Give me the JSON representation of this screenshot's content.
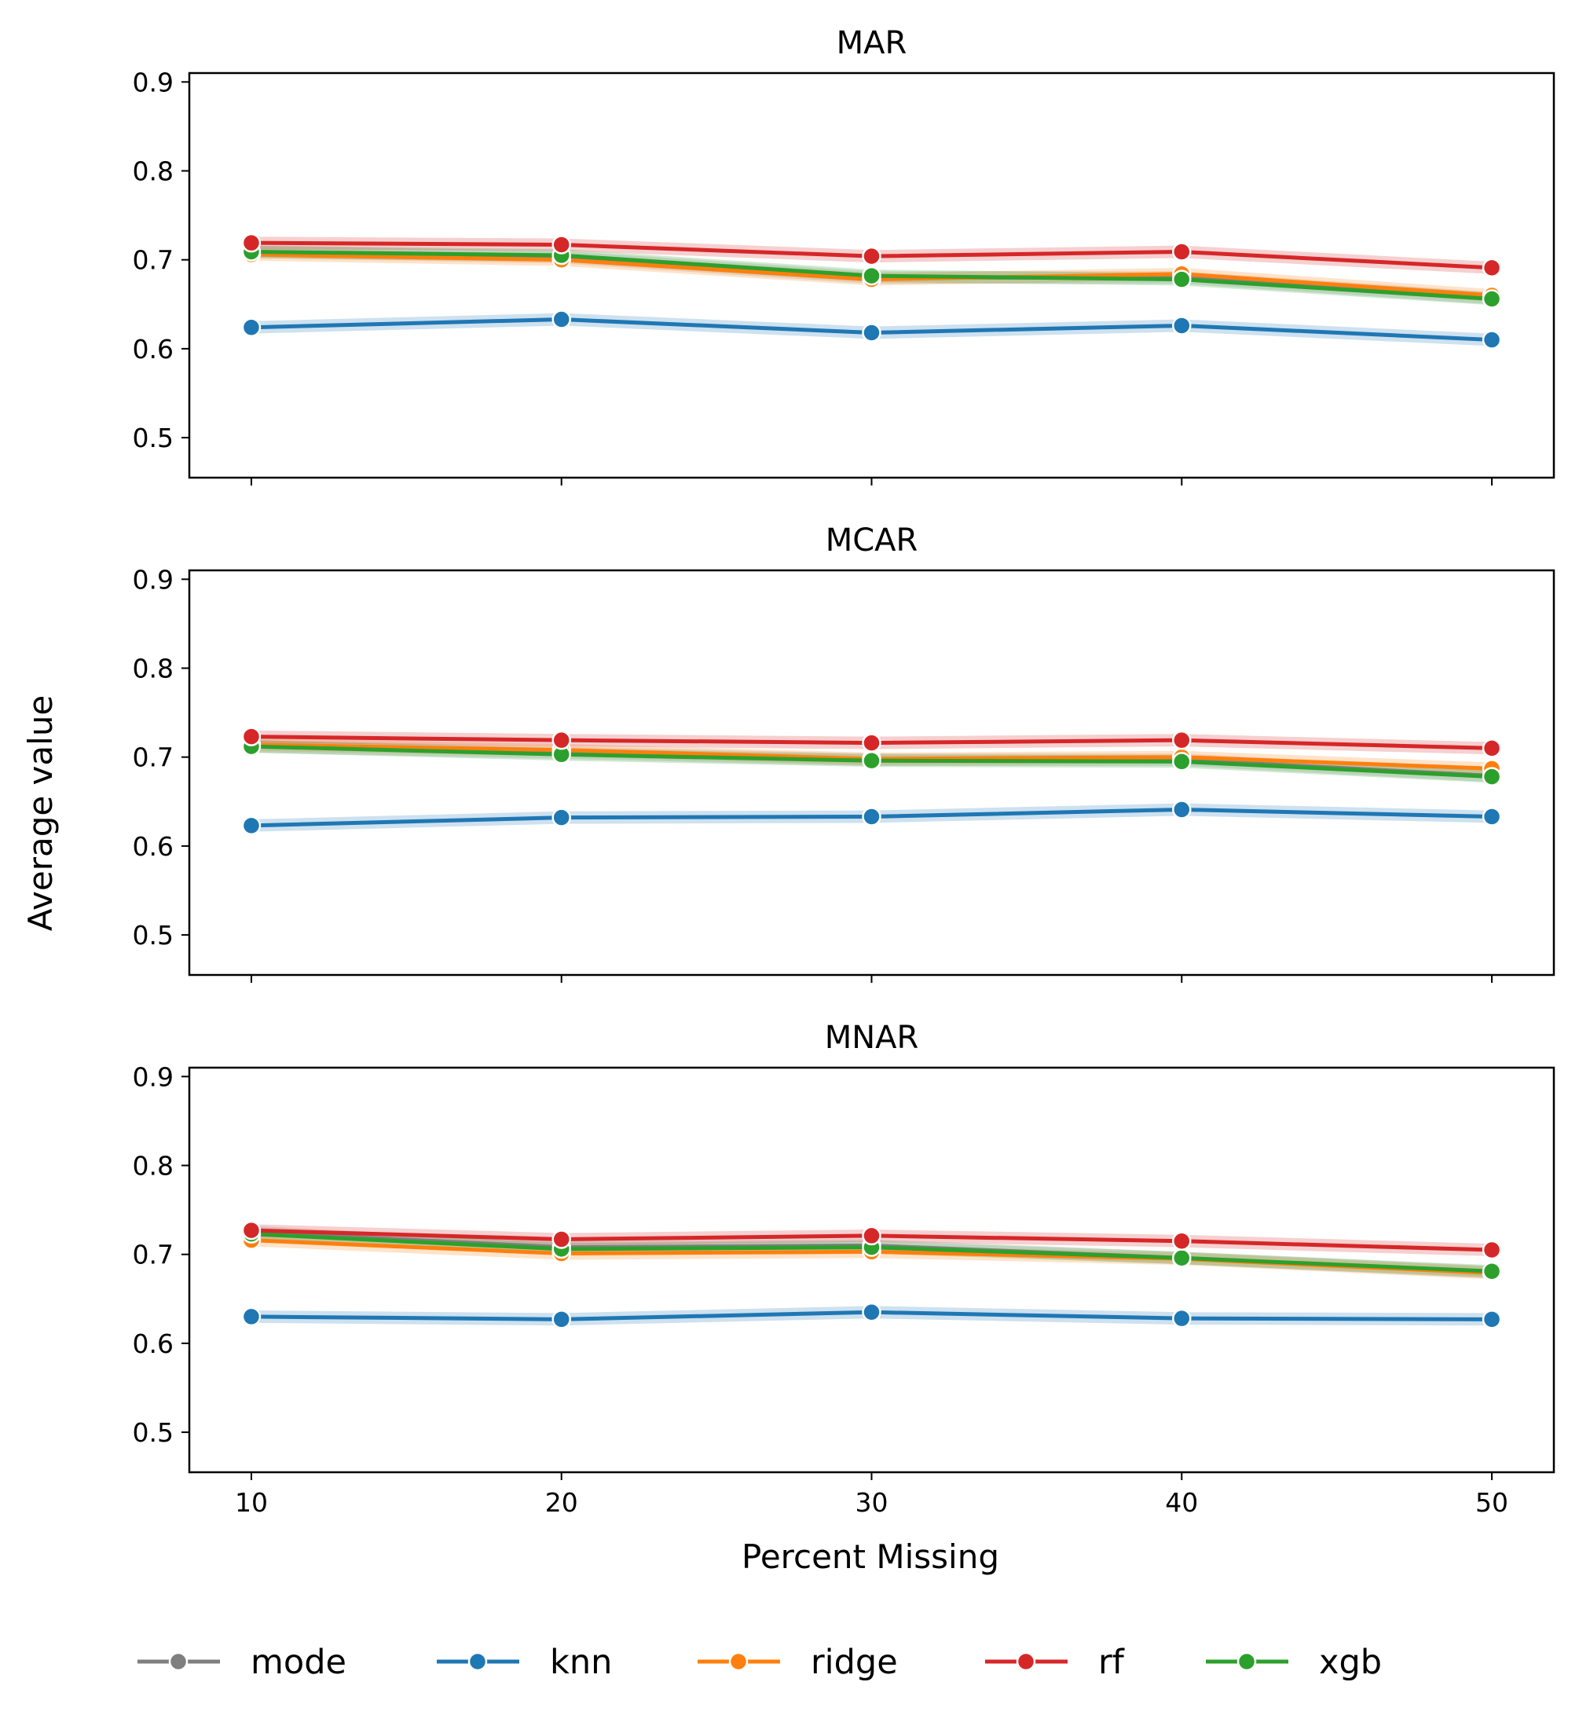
{
  "chart_data": {
    "type": "line",
    "figure_ylabel": "Average value",
    "xlabel": "Percent Missing",
    "x": [
      10,
      20,
      30,
      40,
      50
    ],
    "xticks": [
      "10",
      "20",
      "30",
      "40",
      "50"
    ],
    "yticks": [
      "0.5",
      "0.6",
      "0.7",
      "0.8",
      "0.9"
    ],
    "ylim": [
      0.455,
      0.91
    ],
    "xlim": [
      8,
      52
    ],
    "grid": false,
    "legend_placement": "bottom",
    "legend": [
      {
        "key": "mode",
        "label": "mode",
        "color": "#7f7f7f"
      },
      {
        "key": "knn",
        "label": "knn",
        "color": "#1f77b4"
      },
      {
        "key": "ridge",
        "label": "ridge",
        "color": "#ff7f0e"
      },
      {
        "key": "rf",
        "label": "rf",
        "color": "#d62728"
      },
      {
        "key": "xgb",
        "label": "xgb",
        "color": "#2ca02c"
      }
    ],
    "panels": [
      {
        "title": "MAR",
        "series": [
          {
            "key": "mode",
            "values": [
              0.709,
              0.703,
              0.68,
              0.68,
              0.657
            ]
          },
          {
            "key": "ridge",
            "values": [
              0.706,
              0.7,
              0.678,
              0.684,
              0.66
            ]
          },
          {
            "key": "xgb",
            "values": [
              0.709,
              0.705,
              0.682,
              0.678,
              0.656
            ]
          },
          {
            "key": "rf",
            "values": [
              0.719,
              0.717,
              0.704,
              0.709,
              0.691
            ]
          },
          {
            "key": "knn",
            "values": [
              0.624,
              0.633,
              0.618,
              0.626,
              0.61
            ]
          }
        ]
      },
      {
        "title": "MCAR",
        "series": [
          {
            "key": "mode",
            "values": [
              0.712,
              0.705,
              0.697,
              0.697,
              0.679
            ]
          },
          {
            "key": "ridge",
            "values": [
              0.714,
              0.708,
              0.698,
              0.7,
              0.687
            ]
          },
          {
            "key": "xgb",
            "values": [
              0.712,
              0.703,
              0.696,
              0.695,
              0.678
            ]
          },
          {
            "key": "rf",
            "values": [
              0.723,
              0.719,
              0.716,
              0.719,
              0.71
            ]
          },
          {
            "key": "knn",
            "values": [
              0.623,
              0.632,
              0.633,
              0.641,
              0.633
            ]
          }
        ]
      },
      {
        "title": "MNAR",
        "series": [
          {
            "key": "mode",
            "values": [
              0.725,
              0.708,
              0.71,
              0.696,
              0.68
            ]
          },
          {
            "key": "ridge",
            "values": [
              0.716,
              0.701,
              0.703,
              0.695,
              0.679
            ]
          },
          {
            "key": "xgb",
            "values": [
              0.723,
              0.706,
              0.708,
              0.696,
              0.681
            ]
          },
          {
            "key": "rf",
            "values": [
              0.727,
              0.717,
              0.721,
              0.715,
              0.705
            ]
          },
          {
            "key": "knn",
            "values": [
              0.63,
              0.627,
              0.635,
              0.628,
              0.627
            ]
          }
        ]
      }
    ]
  }
}
